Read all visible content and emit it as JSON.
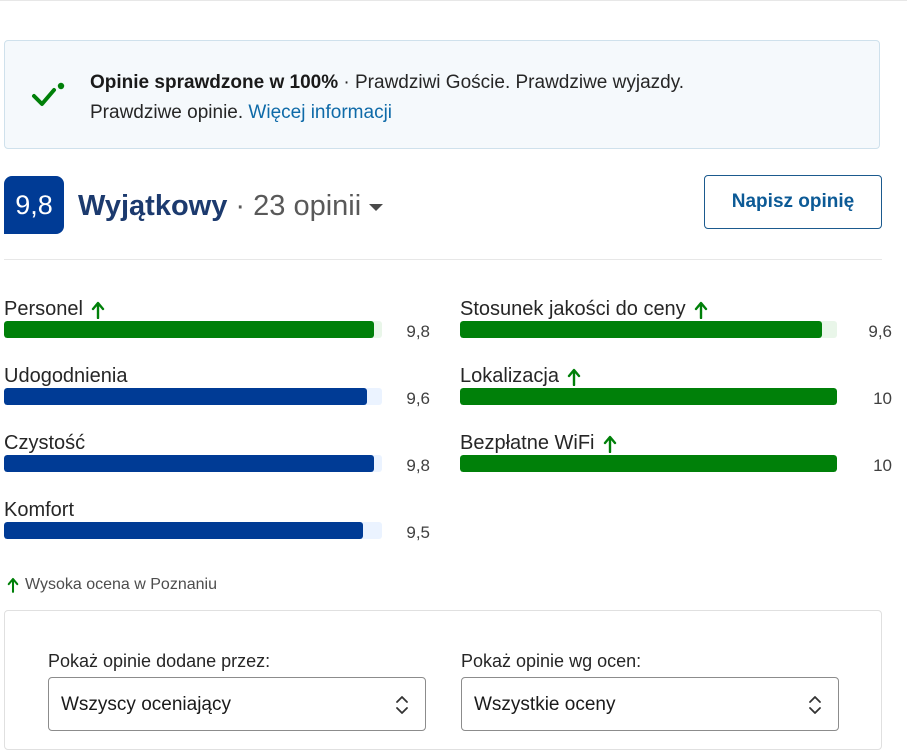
{
  "banner": {
    "bold": "Opinie sprawdzone w 100%",
    "text_line1": " · Prawdziwi Goście. Prawdziwe wyjazdy.",
    "text_line2": "Prawdziwe opinie. ",
    "link": "Więcej informacji",
    "icon": "checkmark-icon"
  },
  "score": {
    "value": "9,8",
    "label": "Wyjątkowy",
    "separator": " · ",
    "count": "23 opinii",
    "write_button": "Napisz opinię"
  },
  "categories": [
    {
      "label": "Personel",
      "value": "9,8",
      "score": 9.8,
      "high": true,
      "color": "#008009"
    },
    {
      "label": "Udogodnienia",
      "value": "9,6",
      "score": 9.6,
      "high": false,
      "color": "#003b95"
    },
    {
      "label": "Czystość",
      "value": "9,8",
      "score": 9.8,
      "high": false,
      "color": "#003b95"
    },
    {
      "label": "Komfort",
      "value": "9,5",
      "score": 9.5,
      "high": false,
      "color": "#003b95"
    },
    {
      "label": "Stosunek jakości do ceny",
      "value": "9,6",
      "score": 9.6,
      "high": true,
      "color": "#008009"
    },
    {
      "label": "Lokalizacja",
      "value": "10",
      "score": 10,
      "high": true,
      "color": "#008009"
    },
    {
      "label": "Bezpłatne WiFi",
      "value": "10",
      "score": 10,
      "high": true,
      "color": "#008009"
    }
  ],
  "footnote": "Wysoka ocena w Poznaniu",
  "filters": {
    "by_author_label": "Pokaż opinie dodane przez:",
    "by_author_value": "Wszyscy oceniający",
    "by_rating_label": "Pokaż opinie wg ocen:",
    "by_rating_value": "Wszystkie oceny"
  }
}
